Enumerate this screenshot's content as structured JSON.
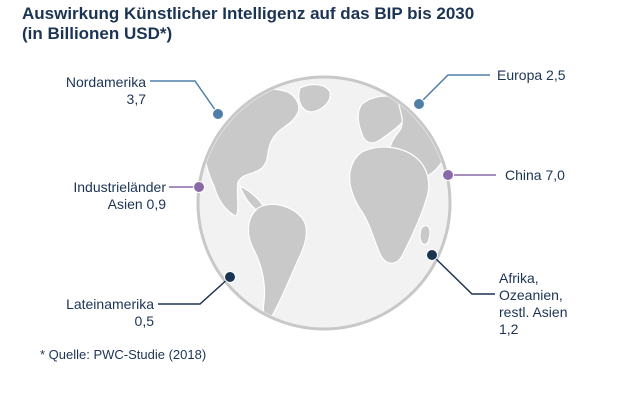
{
  "title": {
    "line1": "Auswirkung Künstlicher Intelligenz auf das BIP bis 2030",
    "line2": "(in Billionen USD*)"
  },
  "colors": {
    "text": "#1c3454",
    "globe_fill": "#f2f2f2",
    "globe_ring": "#c8c8c8",
    "land": "#c9c9c9",
    "light_blue": "#4f7ea8",
    "purple": "#8a6aa6",
    "dark_navy": "#1c3454"
  },
  "regions": [
    {
      "id": "nordamerika",
      "lines": [
        "Nordamerika",
        "3,7"
      ],
      "value": 3.7,
      "color": "light_blue"
    },
    {
      "id": "europa",
      "lines": [
        "Europa 2,5"
      ],
      "value": 2.5,
      "color": "light_blue"
    },
    {
      "id": "industrielaender-asien",
      "lines": [
        "Industrieländer",
        "Asien 0,9"
      ],
      "value": 0.9,
      "color": "purple"
    },
    {
      "id": "china",
      "lines": [
        "China 7,0"
      ],
      "value": 7.0,
      "color": "purple"
    },
    {
      "id": "lateinamerika",
      "lines": [
        "Lateinamerika",
        "0,5"
      ],
      "value": 0.5,
      "color": "dark_navy"
    },
    {
      "id": "afrika-ozeanien",
      "lines": [
        "Afrika,",
        "Ozeanien,",
        "restl. Asien",
        "1,2"
      ],
      "value": 1.2,
      "color": "dark_navy"
    }
  ],
  "footnote": "* Quelle: PWC-Studie (2018)"
}
